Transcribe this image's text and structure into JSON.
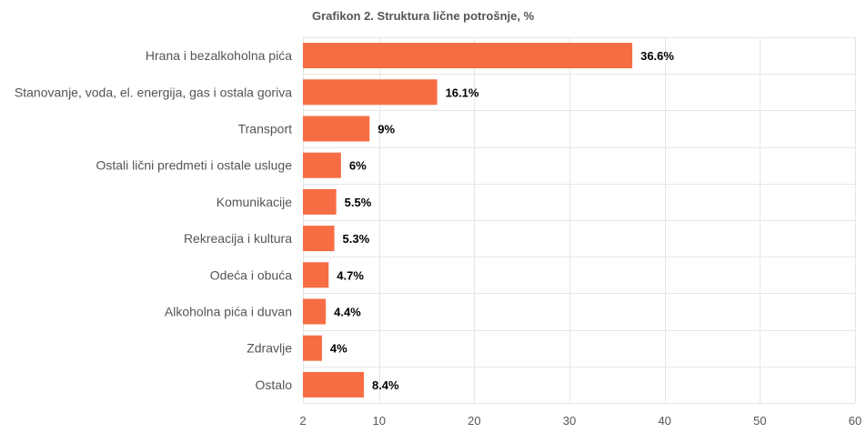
{
  "chart_data": {
    "type": "bar",
    "orientation": "horizontal",
    "title": "Grafikon 2. Struktura lične potrošnje, %",
    "categories": [
      "Hrana i bezalkoholna pića",
      "Stanovanje, voda, el. energija, gas i ostala goriva",
      "Transport",
      "Ostali lični predmeti i ostale usluge",
      "Komunikacije",
      "Rekreacija i kultura",
      "Odeća i obuća",
      "Alkoholna pića i duvan",
      "Zdravlje",
      "Ostalo"
    ],
    "values": [
      36.6,
      16.1,
      9,
      6,
      5.5,
      5.3,
      4.7,
      4.4,
      4,
      8.4
    ],
    "data_labels": [
      "36.6%",
      "16.1%",
      "9%",
      "6%",
      "5.5%",
      "5.3%",
      "4.7%",
      "4.4%",
      "4%",
      "8.4%"
    ],
    "xlim": [
      2,
      60
    ],
    "xticks": [
      2,
      10,
      20,
      30,
      40,
      50,
      60
    ],
    "xlabel": "",
    "ylabel": "",
    "grid": true,
    "legend": "none",
    "colors": {
      "bar": "#f76d43",
      "grid": "#e6e6e6",
      "text": "#555555"
    }
  }
}
